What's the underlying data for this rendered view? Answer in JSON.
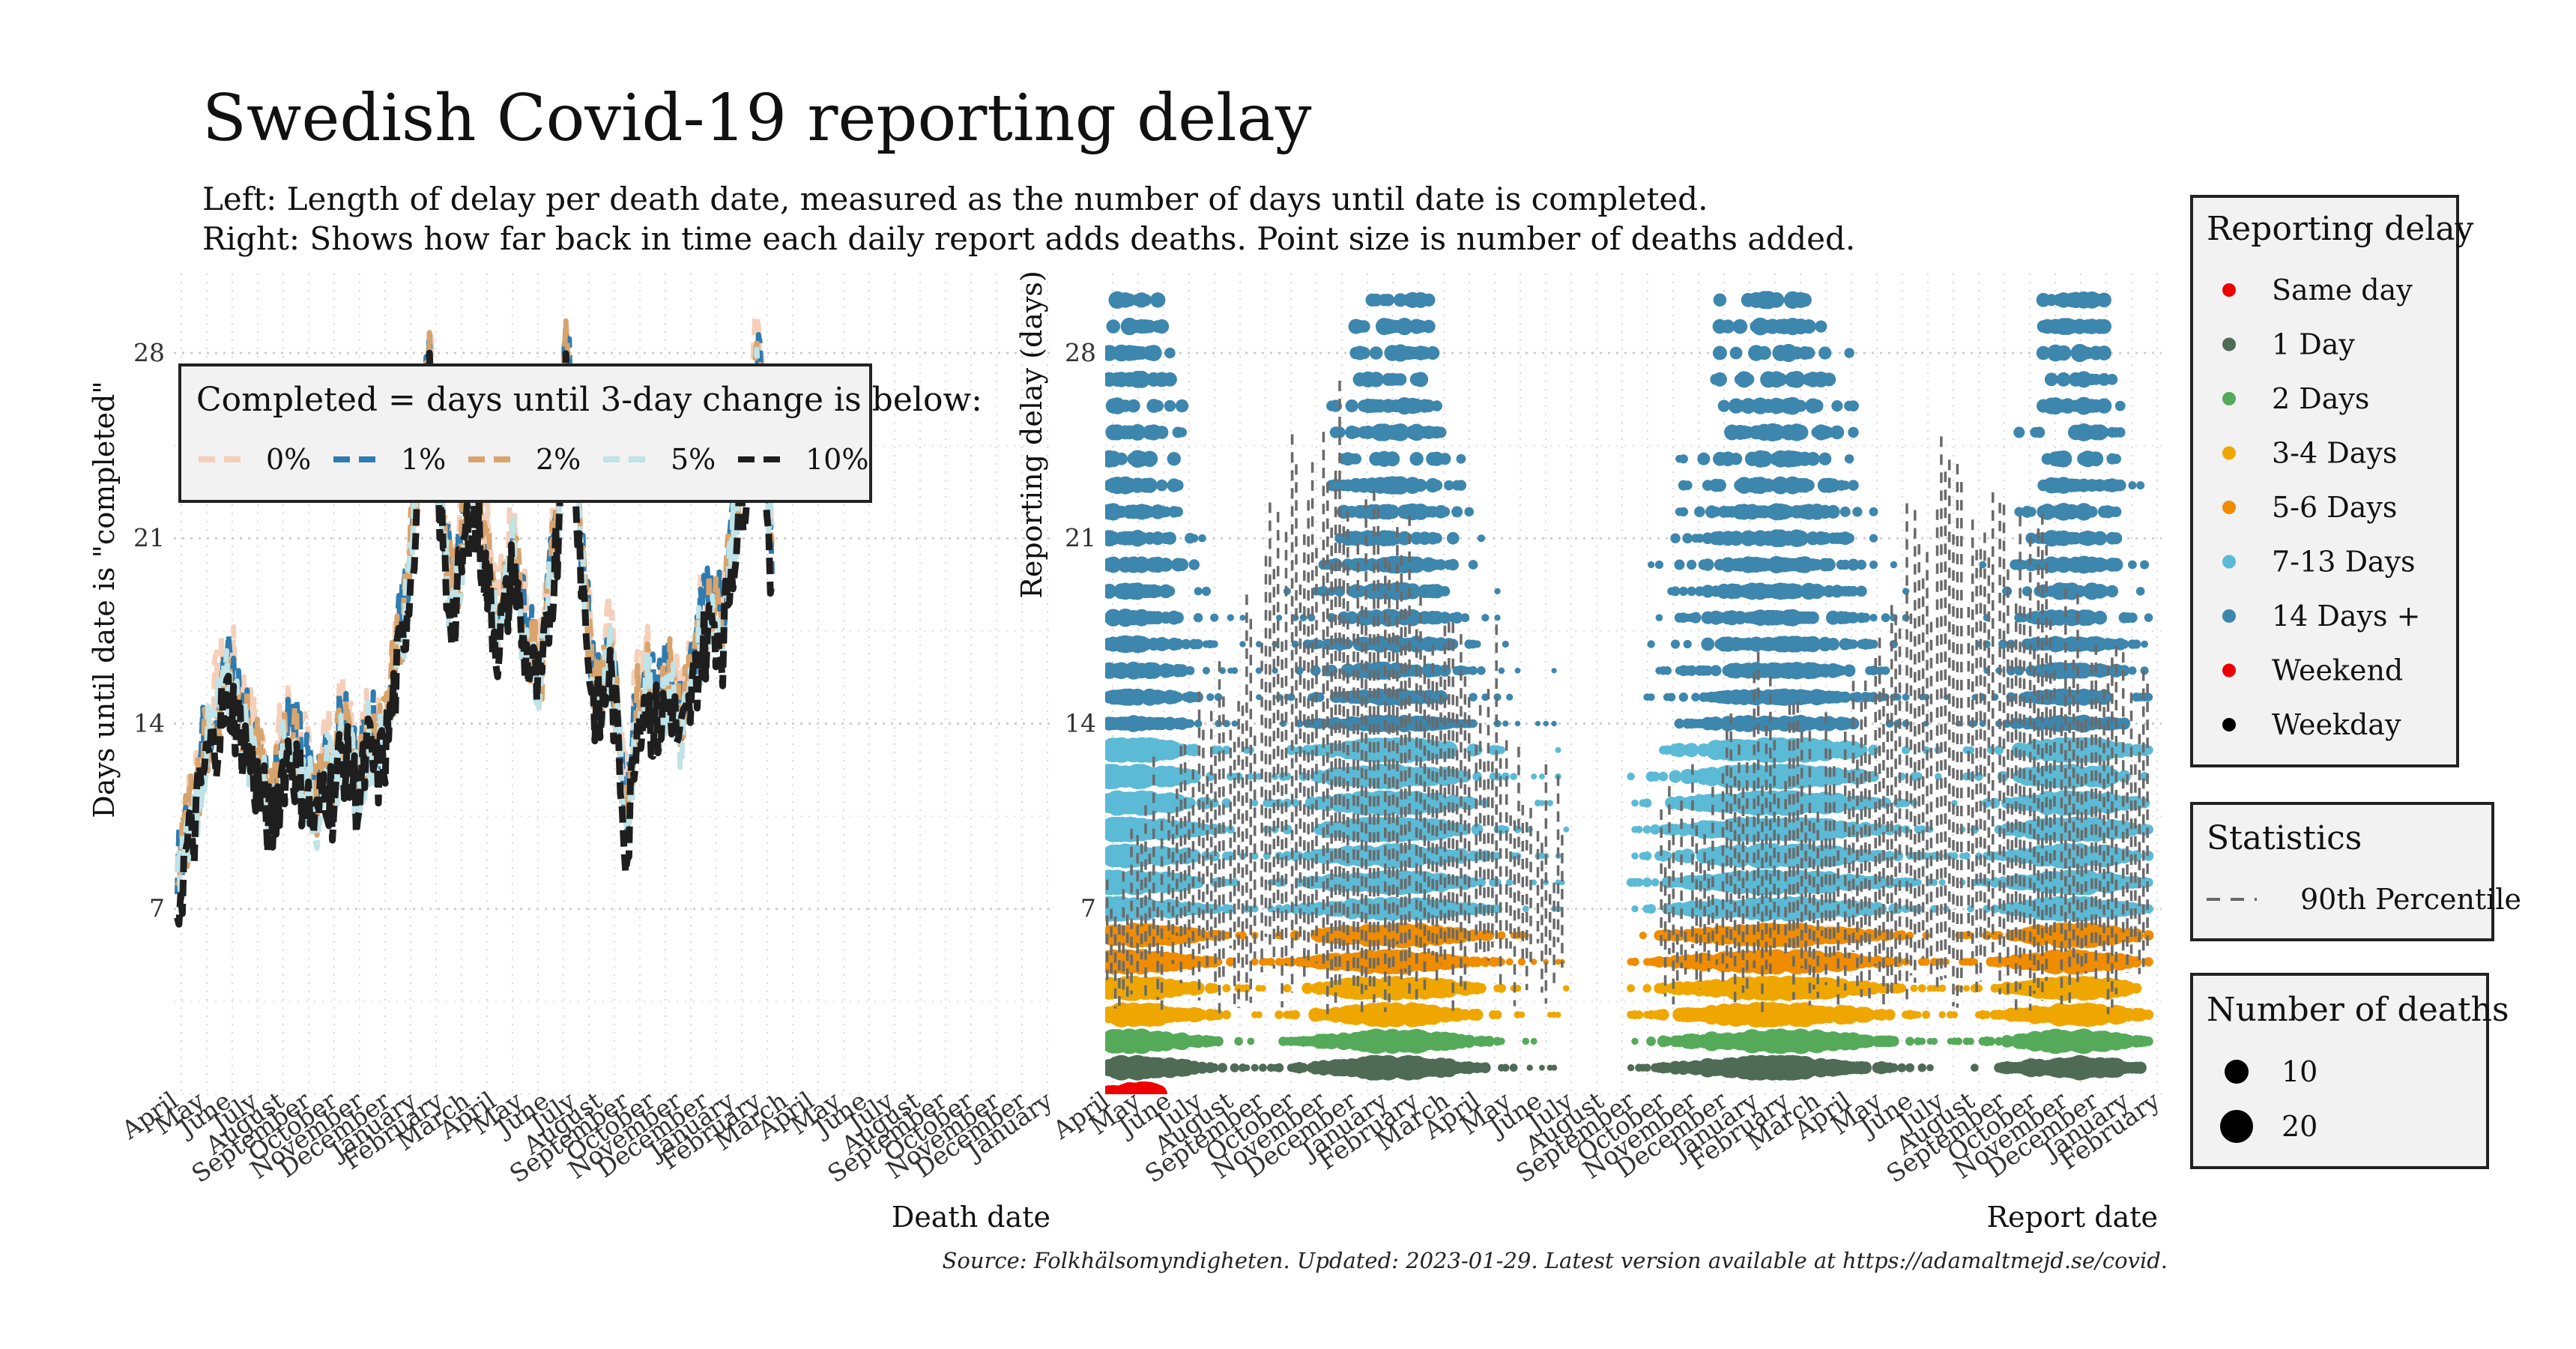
{
  "header": {
    "title": "Swedish Covid-19 reporting delay",
    "subtitle_line1": "Left: Length of delay per death date, measured as the number of days until date is completed.",
    "subtitle_line2": "Right: Shows how far back in time each daily report adds deaths. Point size is number of deaths added."
  },
  "caption": "Source: Folkhälsomyndigheten. Updated: 2023-01-29. Latest version available at https://adamaltmejd.se/covid.",
  "chart_data": [
    {
      "type": "line",
      "xlabel": "Death date",
      "ylabel": "Days until date is \"completed\"",
      "y_ticks": [
        7,
        14,
        21,
        28
      ],
      "ylim": [
        0,
        31
      ],
      "x_ticks": [
        "April",
        "May",
        "June",
        "July",
        "August",
        "September",
        "October",
        "November",
        "December",
        "January",
        "February",
        "March",
        "April",
        "May",
        "June",
        "July",
        "August",
        "September",
        "October",
        "November",
        "December",
        "January",
        "February",
        "March",
        "April",
        "May",
        "June",
        "July",
        "August",
        "September",
        "October",
        "November",
        "December",
        "January"
      ],
      "x_range": [
        "2020-04-01",
        "2023-01-29"
      ],
      "legend": {
        "title": "Completed = days until 3-day change is below:",
        "position": "top-left (inside)",
        "entries": [
          {
            "label": "0%",
            "color": "#f5cfb9"
          },
          {
            "label": "1%",
            "color": "#2e7bb0"
          },
          {
            "label": "2%",
            "color": "#d8a46c"
          },
          {
            "label": "5%",
            "color": "#bfe3e6"
          },
          {
            "label": "10%",
            "color": "#1e1e1e"
          }
        ]
      },
      "series": [
        {
          "name": "10%",
          "x": [
            "2020-04-05",
            "2020-04-15",
            "2020-04-25",
            "2020-05-05",
            "2020-05-15",
            "2020-05-25",
            "2020-06-05",
            "2020-06-15",
            "2020-06-25",
            "2020-07-05",
            "2020-07-15",
            "2020-07-25",
            "2020-08-05",
            "2020-08-15",
            "2020-08-25",
            "2020-09-05",
            "2020-09-15",
            "2020-09-25",
            "2020-10-05",
            "2020-10-15",
            "2020-10-25",
            "2020-11-05",
            "2020-11-15",
            "2020-11-25",
            "2020-12-05",
            "2020-12-15",
            "2020-12-25",
            "2021-01-05",
            "2021-01-15",
            "2021-01-25",
            "2021-02-05",
            "2021-02-15",
            "2021-02-25",
            "2021-03-05",
            "2021-03-15",
            "2021-03-25",
            "2021-04-05",
            "2021-04-15",
            "2021-04-25",
            "2021-05-05",
            "2021-05-15",
            "2021-05-25",
            "2021-06-05",
            "2021-06-15",
            "2021-06-25",
            "2021-07-05",
            "2021-07-15",
            "2021-07-25",
            "2021-08-05",
            "2021-08-15",
            "2021-08-25",
            "2021-09-05",
            "2021-09-15",
            "2021-09-25",
            "2021-10-05",
            "2021-10-15",
            "2021-10-25",
            "2021-11-05",
            "2021-11-15",
            "2021-11-25",
            "2021-12-05",
            "2021-12-15",
            "2021-12-25",
            "2022-01-05",
            "2022-01-15",
            "2022-01-25",
            "2022-02-05",
            "2022-02-15",
            "2022-02-25",
            "2022-03-05"
          ],
          "y": [
            7,
            9,
            10,
            12,
            13,
            14,
            15,
            14,
            13,
            12,
            11,
            10,
            12,
            13,
            12,
            11,
            10,
            12,
            11,
            13,
            12,
            11,
            13,
            12,
            13,
            15,
            17,
            20,
            24,
            27,
            23,
            19,
            18,
            20,
            22,
            21,
            19,
            17,
            18,
            20,
            17,
            16,
            15,
            18,
            21,
            27,
            24,
            19,
            15,
            14,
            16,
            13,
            9,
            14,
            15,
            14,
            14,
            15,
            13,
            14,
            16,
            17,
            18,
            17,
            20,
            22,
            24,
            27,
            23,
            19
          ]
        }
      ]
    },
    {
      "type": "scatter",
      "xlabel": "Report date",
      "ylabel": "Reporting delay (days)",
      "y_ticks": [
        7,
        14,
        21,
        28
      ],
      "ylim": [
        0,
        31
      ],
      "x_ticks": [
        "April",
        "May",
        "June",
        "July",
        "August",
        "September",
        "October",
        "November",
        "December",
        "January",
        "February",
        "March",
        "April",
        "May",
        "June",
        "July",
        "August",
        "September",
        "October",
        "November",
        "December",
        "January",
        "February",
        "March",
        "April",
        "May",
        "June",
        "July",
        "August",
        "September",
        "October",
        "November",
        "December",
        "January",
        "February"
      ],
      "x_range": [
        "2020-04-01",
        "2023-02-10"
      ],
      "gaps": [
        [
          "2021-07-01",
          "2021-09-01"
        ]
      ],
      "point_categories": [
        {
          "label": "Same day",
          "delay_range": [
            0,
            0
          ],
          "color": "#ee0000"
        },
        {
          "label": "1 Day",
          "delay_range": [
            1,
            1
          ],
          "color": "#4f6b55"
        },
        {
          "label": "2 Days",
          "delay_range": [
            2,
            2
          ],
          "color": "#55aa5a"
        },
        {
          "label": "3-4 Days",
          "delay_range": [
            3,
            4
          ],
          "color": "#efa700"
        },
        {
          "label": "5-6 Days",
          "delay_range": [
            5,
            6
          ],
          "color": "#ef8c00"
        },
        {
          "label": "7-13 Days",
          "delay_range": [
            7,
            13
          ],
          "color": "#5bbad6"
        },
        {
          "label": "14 Days +",
          "delay_range": [
            14,
            30
          ],
          "color": "#3d86ad"
        }
      ],
      "percentile_series": {
        "name": "90th Percentile",
        "x": [
          "2020-04-15",
          "2020-05-15",
          "2020-06-15",
          "2020-07-15",
          "2020-08-15",
          "2020-09-15",
          "2020-10-15",
          "2020-11-15",
          "2020-12-15",
          "2021-01-15",
          "2021-02-15",
          "2021-03-15",
          "2021-04-15",
          "2021-05-15",
          "2021-06-15",
          "2021-10-15",
          "2021-11-15",
          "2021-12-15",
          "2022-01-15",
          "2022-02-15",
          "2022-03-15",
          "2022-04-15",
          "2022-05-15",
          "2022-06-15",
          "2022-07-15",
          "2022-08-15",
          "2022-09-15",
          "2022-10-15",
          "2022-11-15",
          "2022-12-15",
          "2023-01-15"
        ],
        "y": [
          8,
          10,
          12,
          14,
          16,
          20,
          22,
          24,
          20,
          19,
          18,
          16,
          15,
          12,
          10,
          9,
          10,
          12,
          14,
          13,
          12,
          13,
          18,
          20,
          22,
          21,
          20,
          19,
          17,
          16,
          14
        ]
      }
    }
  ],
  "legends": {
    "reporting_delay": {
      "title": "Reporting delay",
      "items": [
        {
          "label": "Same day",
          "color": "#ee0000"
        },
        {
          "label": "1 Day",
          "color": "#4f6b55"
        },
        {
          "label": "2 Days",
          "color": "#55aa5a"
        },
        {
          "label": "3-4 Days",
          "color": "#efa700"
        },
        {
          "label": "5-6 Days",
          "color": "#ef8c00"
        },
        {
          "label": "7-13 Days",
          "color": "#5bbad6"
        },
        {
          "label": "14 Days +",
          "color": "#3d86ad"
        },
        {
          "label": "Weekend",
          "color": "#ee0000"
        },
        {
          "label": "Weekday",
          "color": "#000000"
        }
      ]
    },
    "statistics": {
      "title": "Statistics",
      "items": [
        {
          "label": "90th Percentile",
          "color": "#666666"
        }
      ]
    },
    "number_of_deaths": {
      "title": "Number of deaths",
      "items": [
        {
          "label": "10",
          "value": 10
        },
        {
          "label": "20",
          "value": 20
        }
      ]
    }
  }
}
